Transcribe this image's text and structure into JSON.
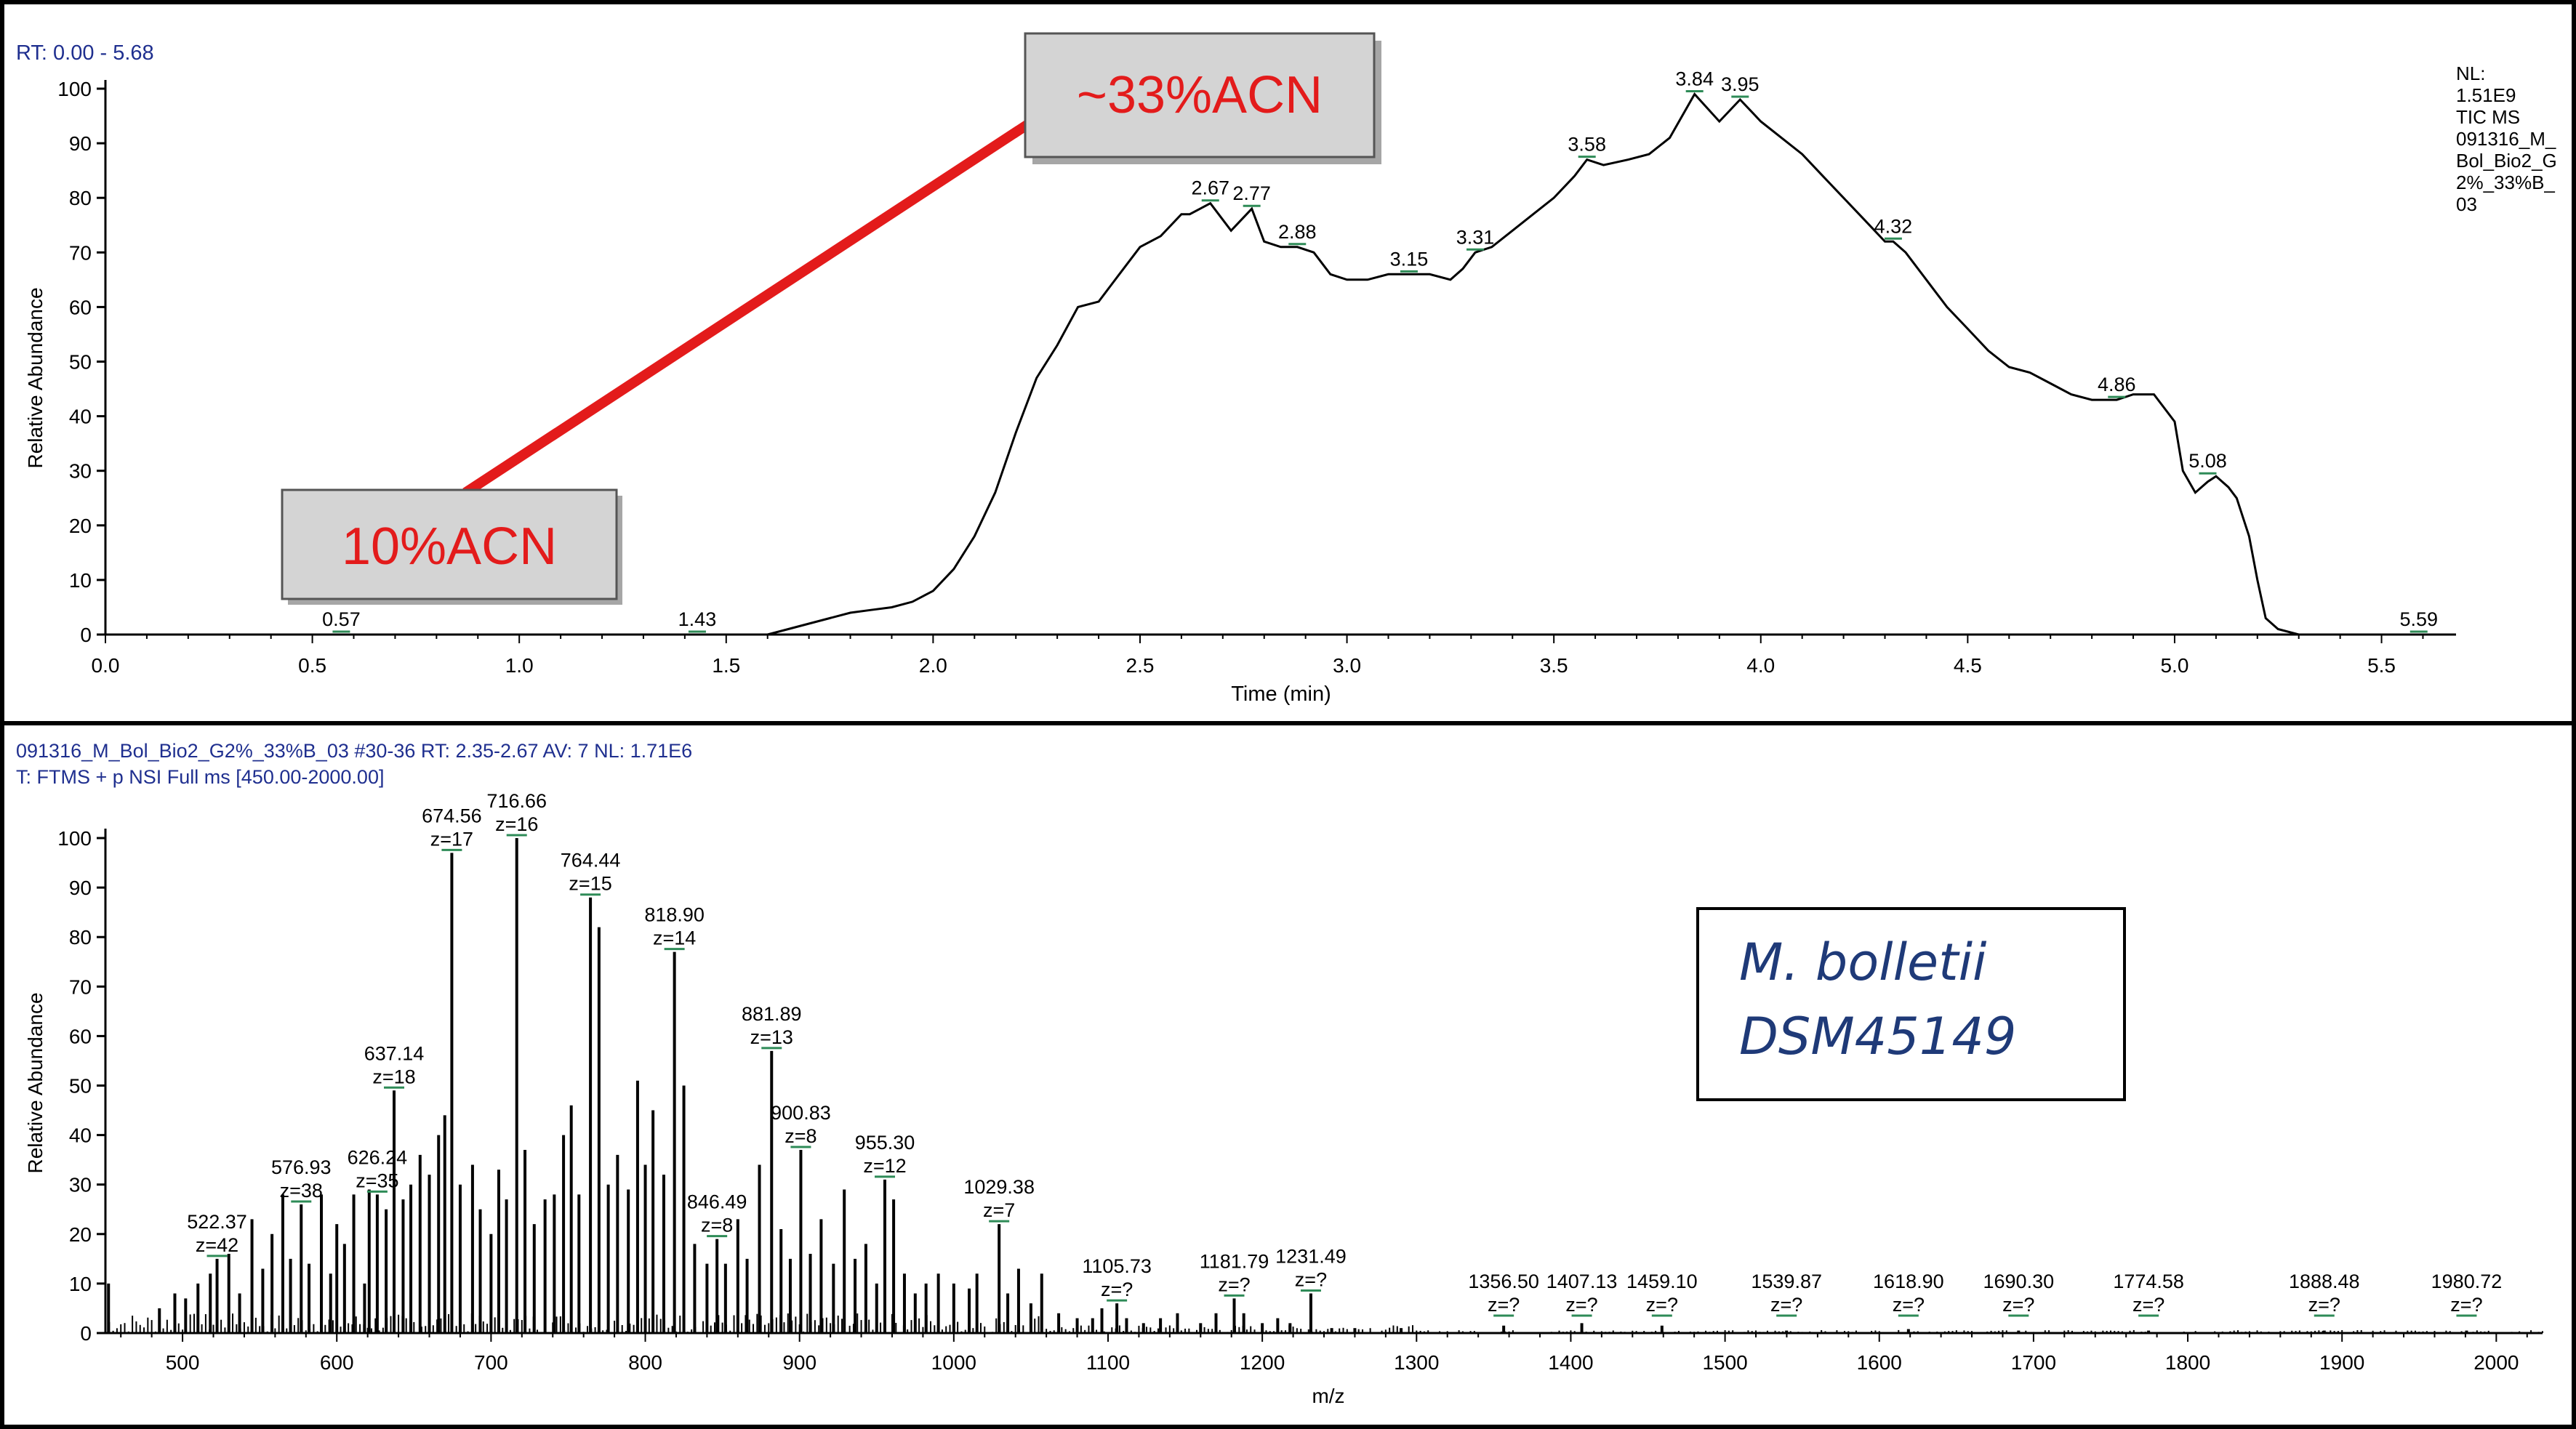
{
  "chart_data": [
    {
      "type": "line",
      "rt_label": "RT: 0.00 - 5.68",
      "xlabel": "Time (min)",
      "ylabel": "Relative Abundance",
      "xlim": [
        0.0,
        5.68
      ],
      "ylim": [
        0,
        100
      ],
      "x_ticks": [
        "0.0",
        "0.5",
        "1.0",
        "1.5",
        "2.0",
        "2.5",
        "3.0",
        "3.5",
        "4.0",
        "4.5",
        "5.0",
        "5.5"
      ],
      "y_ticks": [
        "0",
        "10",
        "20",
        "30",
        "40",
        "50",
        "60",
        "70",
        "80",
        "90",
        "100"
      ],
      "info_lines": [
        "NL:",
        "1.51E9",
        "TIC  MS",
        "091316_M_",
        "Bol_Bio2_G",
        "2%_33%B_",
        "03"
      ],
      "series": [
        {
          "x": [
            0.1,
            0.38,
            0.8,
            1.0,
            1.43,
            1.6,
            1.65,
            1.7,
            1.75,
            1.8,
            1.85,
            1.9,
            1.95,
            2.0,
            2.05,
            2.1,
            2.15,
            2.2,
            2.25,
            2.3,
            2.35,
            2.4,
            2.45,
            2.5,
            2.55,
            2.6,
            2.62,
            2.67,
            2.72,
            2.77,
            2.8,
            2.84,
            2.88,
            2.92,
            2.96,
            3.0,
            3.05,
            3.1,
            3.15,
            3.2,
            3.25,
            3.28,
            3.31,
            3.35,
            3.4,
            3.45,
            3.5,
            3.55,
            3.58,
            3.62,
            3.68,
            3.73,
            3.78,
            3.84,
            3.9,
            3.95,
            4.0,
            4.05,
            4.1,
            4.15,
            4.2,
            4.25,
            4.3,
            4.32,
            4.35,
            4.4,
            4.45,
            4.5,
            4.55,
            4.6,
            4.65,
            4.7,
            4.75,
            4.8,
            4.86,
            4.9,
            4.95,
            5.0,
            5.02,
            5.05,
            5.08,
            5.1,
            5.13,
            5.15,
            5.18,
            5.2,
            5.22,
            5.25,
            5.3,
            5.4,
            5.5,
            5.59,
            5.65
          ],
          "y": [
            0,
            0,
            0,
            0,
            0,
            0,
            1,
            2,
            3,
            4,
            4.5,
            5,
            6,
            8,
            12,
            18,
            26,
            37,
            47,
            53,
            60,
            61,
            66,
            71,
            73,
            77,
            77,
            79,
            74,
            78,
            72,
            71,
            71,
            70,
            66,
            65,
            65,
            66,
            66,
            66,
            65,
            67,
            70,
            71,
            74,
            77,
            80,
            84,
            87,
            86,
            87,
            88,
            91,
            99,
            94,
            98,
            94,
            91,
            88,
            84,
            80,
            76,
            72,
            72,
            70,
            65,
            60,
            56,
            52,
            49,
            48,
            46,
            44,
            43,
            43,
            44,
            44,
            39,
            30,
            26,
            28,
            29,
            27,
            25,
            18,
            10,
            3,
            1,
            0,
            0,
            0,
            0,
            0
          ]
        }
      ],
      "peak_labels": [
        {
          "x": 0.57,
          "y": 0,
          "text": "0.57"
        },
        {
          "x": 1.43,
          "y": 0,
          "text": "1.43"
        },
        {
          "x": 2.67,
          "y": 79,
          "text": "2.67"
        },
        {
          "x": 2.77,
          "y": 78,
          "text": "2.77"
        },
        {
          "x": 2.88,
          "y": 71,
          "text": "2.88"
        },
        {
          "x": 3.15,
          "y": 66,
          "text": "3.15"
        },
        {
          "x": 3.31,
          "y": 70,
          "text": "3.31"
        },
        {
          "x": 3.58,
          "y": 87,
          "text": "3.58"
        },
        {
          "x": 3.84,
          "y": 99,
          "text": "3.84"
        },
        {
          "x": 3.95,
          "y": 98,
          "text": "3.95"
        },
        {
          "x": 4.32,
          "y": 72,
          "text": "4.32"
        },
        {
          "x": 4.86,
          "y": 43,
          "text": "4.86"
        },
        {
          "x": 5.08,
          "y": 29,
          "text": "5.08"
        },
        {
          "x": 5.59,
          "y": 0,
          "text": "5.59"
        }
      ],
      "annotations": [
        {
          "text": "10%ACN",
          "x": 0.87,
          "y": 26
        },
        {
          "text": "~33%ACN",
          "x": 2.3,
          "y": 97
        }
      ],
      "annotation_color": "#e31b1b"
    },
    {
      "type": "bar",
      "header_line1": "091316_M_Bol_Bio2_G2%_33%B_03 #30-36   RT: 2.35-2.67   AV: 7   NL: 1.71E6",
      "header_line2": "T: FTMS + p NSI Full ms [450.00-2000.00]",
      "xlabel": "m/z",
      "ylabel": "Relative Abundance",
      "xlim": [
        450,
        2030
      ],
      "ylim": [
        0,
        100
      ],
      "x_ticks": [
        "500",
        "600",
        "700",
        "800",
        "900",
        "1000",
        "1100",
        "1200",
        "1300",
        "1400",
        "1500",
        "1600",
        "1700",
        "1800",
        "1900",
        "2000"
      ],
      "y_ticks": [
        "0",
        "10",
        "20",
        "30",
        "40",
        "50",
        "60",
        "70",
        "80",
        "90",
        "100"
      ],
      "peaks": [
        {
          "mz": 452,
          "i": 10
        },
        {
          "mz": 485,
          "i": 5
        },
        {
          "mz": 495,
          "i": 8
        },
        {
          "mz": 502,
          "i": 7
        },
        {
          "mz": 510,
          "i": 10
        },
        {
          "mz": 518,
          "i": 12
        },
        {
          "mz": 522.37,
          "i": 15
        },
        {
          "mz": 530,
          "i": 16
        },
        {
          "mz": 537,
          "i": 8
        },
        {
          "mz": 545,
          "i": 23
        },
        {
          "mz": 552,
          "i": 13
        },
        {
          "mz": 558,
          "i": 20
        },
        {
          "mz": 565,
          "i": 28
        },
        {
          "mz": 570,
          "i": 15
        },
        {
          "mz": 576.93,
          "i": 26
        },
        {
          "mz": 582,
          "i": 14
        },
        {
          "mz": 590,
          "i": 28
        },
        {
          "mz": 596,
          "i": 12
        },
        {
          "mz": 600,
          "i": 22
        },
        {
          "mz": 605,
          "i": 18
        },
        {
          "mz": 611,
          "i": 28
        },
        {
          "mz": 618,
          "i": 10
        },
        {
          "mz": 621,
          "i": 29
        },
        {
          "mz": 626.24,
          "i": 28
        },
        {
          "mz": 632,
          "i": 25
        },
        {
          "mz": 637.14,
          "i": 49
        },
        {
          "mz": 643,
          "i": 27
        },
        {
          "mz": 648,
          "i": 30
        },
        {
          "mz": 654,
          "i": 36
        },
        {
          "mz": 660,
          "i": 32
        },
        {
          "mz": 666,
          "i": 40
        },
        {
          "mz": 670,
          "i": 44
        },
        {
          "mz": 674.56,
          "i": 97
        },
        {
          "mz": 680,
          "i": 30
        },
        {
          "mz": 688,
          "i": 34
        },
        {
          "mz": 693,
          "i": 25
        },
        {
          "mz": 700,
          "i": 20
        },
        {
          "mz": 705,
          "i": 33
        },
        {
          "mz": 710,
          "i": 27
        },
        {
          "mz": 716.66,
          "i": 100
        },
        {
          "mz": 722,
          "i": 37
        },
        {
          "mz": 728,
          "i": 22
        },
        {
          "mz": 735,
          "i": 27
        },
        {
          "mz": 741,
          "i": 28
        },
        {
          "mz": 747,
          "i": 40
        },
        {
          "mz": 752,
          "i": 46
        },
        {
          "mz": 757,
          "i": 28
        },
        {
          "mz": 764.44,
          "i": 88
        },
        {
          "mz": 770,
          "i": 82
        },
        {
          "mz": 776,
          "i": 30
        },
        {
          "mz": 782,
          "i": 36
        },
        {
          "mz": 789,
          "i": 29
        },
        {
          "mz": 795,
          "i": 51
        },
        {
          "mz": 800,
          "i": 34
        },
        {
          "mz": 805,
          "i": 45
        },
        {
          "mz": 812,
          "i": 32
        },
        {
          "mz": 818.9,
          "i": 77
        },
        {
          "mz": 825,
          "i": 50
        },
        {
          "mz": 832,
          "i": 18
        },
        {
          "mz": 840,
          "i": 14
        },
        {
          "mz": 846.49,
          "i": 19
        },
        {
          "mz": 852,
          "i": 14
        },
        {
          "mz": 860,
          "i": 23
        },
        {
          "mz": 866,
          "i": 15
        },
        {
          "mz": 874,
          "i": 34
        },
        {
          "mz": 881.89,
          "i": 57
        },
        {
          "mz": 888,
          "i": 21
        },
        {
          "mz": 894,
          "i": 15
        },
        {
          "mz": 900.83,
          "i": 37
        },
        {
          "mz": 907,
          "i": 16
        },
        {
          "mz": 914,
          "i": 23
        },
        {
          "mz": 922,
          "i": 14
        },
        {
          "mz": 929,
          "i": 29
        },
        {
          "mz": 936,
          "i": 15
        },
        {
          "mz": 943,
          "i": 18
        },
        {
          "mz": 950,
          "i": 10
        },
        {
          "mz": 955.3,
          "i": 31
        },
        {
          "mz": 961,
          "i": 27
        },
        {
          "mz": 968,
          "i": 12
        },
        {
          "mz": 975,
          "i": 8
        },
        {
          "mz": 982,
          "i": 10
        },
        {
          "mz": 990,
          "i": 12
        },
        {
          "mz": 1000,
          "i": 10
        },
        {
          "mz": 1010,
          "i": 9
        },
        {
          "mz": 1015,
          "i": 12
        },
        {
          "mz": 1029.38,
          "i": 22
        },
        {
          "mz": 1035,
          "i": 8
        },
        {
          "mz": 1042,
          "i": 13
        },
        {
          "mz": 1050,
          "i": 6
        },
        {
          "mz": 1057,
          "i": 12
        },
        {
          "mz": 1068,
          "i": 4
        },
        {
          "mz": 1080,
          "i": 3
        },
        {
          "mz": 1090,
          "i": 3
        },
        {
          "mz": 1096,
          "i": 5
        },
        {
          "mz": 1105.73,
          "i": 6
        },
        {
          "mz": 1112,
          "i": 3
        },
        {
          "mz": 1123,
          "i": 2
        },
        {
          "mz": 1134,
          "i": 3
        },
        {
          "mz": 1145,
          "i": 4
        },
        {
          "mz": 1160,
          "i": 2
        },
        {
          "mz": 1170,
          "i": 4
        },
        {
          "mz": 1181.79,
          "i": 7
        },
        {
          "mz": 1188,
          "i": 4
        },
        {
          "mz": 1200,
          "i": 2
        },
        {
          "mz": 1210,
          "i": 3
        },
        {
          "mz": 1218,
          "i": 2
        },
        {
          "mz": 1231.49,
          "i": 8
        },
        {
          "mz": 1245,
          "i": 1
        },
        {
          "mz": 1260,
          "i": 1
        },
        {
          "mz": 1290,
          "i": 1
        },
        {
          "mz": 1356.5,
          "i": 1.5
        },
        {
          "mz": 1407.13,
          "i": 2
        },
        {
          "mz": 1459.1,
          "i": 1.5
        },
        {
          "mz": 1539.87,
          "i": 0.5
        },
        {
          "mz": 1618.9,
          "i": 0.8
        },
        {
          "mz": 1690.3,
          "i": 0.5
        },
        {
          "mz": 1774.58,
          "i": 0.5
        },
        {
          "mz": 1888.48,
          "i": 0.5
        },
        {
          "mz": 1980.72,
          "i": 0.5
        }
      ],
      "noise_floor": {
        "start": 450,
        "end": 2030,
        "step": 2.5
      },
      "peak_labels": [
        {
          "mz": 522.37,
          "i": 15,
          "mass": "522.37",
          "charge": "z=42"
        },
        {
          "mz": 576.93,
          "i": 26,
          "mass": "576.93",
          "charge": "z=38"
        },
        {
          "mz": 626.24,
          "i": 28,
          "mass": "626.24",
          "charge": "z=35"
        },
        {
          "mz": 637.14,
          "i": 49,
          "mass": "637.14",
          "charge": "z=18"
        },
        {
          "mz": 674.56,
          "i": 97,
          "mass": "674.56",
          "charge": "z=17"
        },
        {
          "mz": 716.66,
          "i": 100,
          "mass": "716.66",
          "charge": "z=16"
        },
        {
          "mz": 764.44,
          "i": 88,
          "mass": "764.44",
          "charge": "z=15"
        },
        {
          "mz": 818.9,
          "i": 77,
          "mass": "818.90",
          "charge": "z=14"
        },
        {
          "mz": 846.49,
          "i": 19,
          "mass": "846.49",
          "charge": "z=8"
        },
        {
          "mz": 881.89,
          "i": 57,
          "mass": "881.89",
          "charge": "z=13"
        },
        {
          "mz": 900.83,
          "i": 37,
          "mass": "900.83",
          "charge": "z=8"
        },
        {
          "mz": 955.3,
          "i": 31,
          "mass": "955.30",
          "charge": "z=12"
        },
        {
          "mz": 1029.38,
          "i": 22,
          "mass": "1029.38",
          "charge": "z=7"
        },
        {
          "mz": 1105.73,
          "i": 6,
          "mass": "1105.73",
          "charge": "z=?"
        },
        {
          "mz": 1181.79,
          "i": 7,
          "mass": "1181.79",
          "charge": "z=?"
        },
        {
          "mz": 1231.49,
          "i": 8,
          "mass": "1231.49",
          "charge": "z=?"
        },
        {
          "mz": 1356.5,
          "i": 1.5,
          "mass": "1356.50",
          "charge": "z=?"
        },
        {
          "mz": 1407.13,
          "i": 2,
          "mass": "1407.13",
          "charge": "z=?"
        },
        {
          "mz": 1459.1,
          "i": 1.5,
          "mass": "1459.10",
          "charge": "z=?"
        },
        {
          "mz": 1539.87,
          "i": 0.5,
          "mass": "1539.87",
          "charge": "z=?"
        },
        {
          "mz": 1618.9,
          "i": 0.8,
          "mass": "1618.90",
          "charge": "z=?"
        },
        {
          "mz": 1690.3,
          "i": 0.5,
          "mass": "1690.30",
          "charge": "z=?"
        },
        {
          "mz": 1774.58,
          "i": 0.5,
          "mass": "1774.58",
          "charge": "z=?"
        },
        {
          "mz": 1888.48,
          "i": 0.5,
          "mass": "1888.48",
          "charge": "z=?"
        },
        {
          "mz": 1980.72,
          "i": 0.5,
          "mass": "1980.72",
          "charge": "z=?"
        }
      ],
      "species_box": {
        "line1": "M. bolletii",
        "line2": "DSM45149"
      },
      "charge_mark_color": "#2e8b57"
    }
  ]
}
